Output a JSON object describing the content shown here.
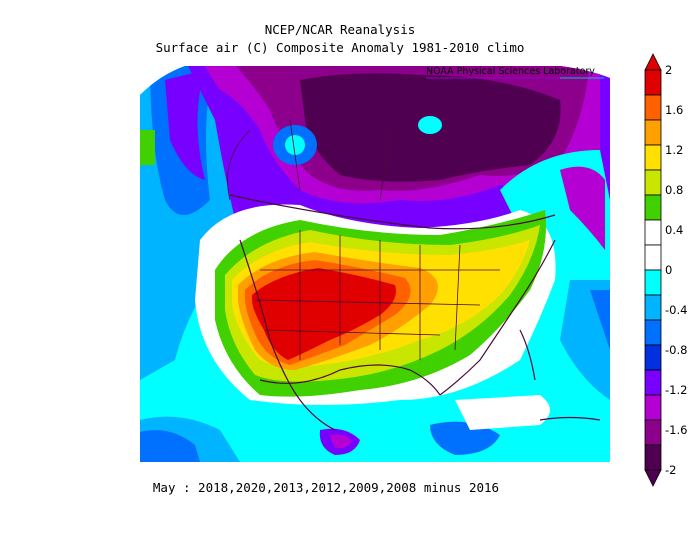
{
  "header": {
    "title_line1": "NCEP/NCAR Reanalysis",
    "title_line2": "Surface air (C) Composite Anomaly 1981-2010 climo",
    "credit": "NOAA Physical Sciences Laboratory"
  },
  "caption": "May : 2018,2020,2013,2012,2009,2008 minus 2016",
  "colorbar": {
    "labels": [
      "2",
      "1.6",
      "1.2",
      "0.8",
      "0.4",
      "0",
      "-0.4",
      "-0.8",
      "-1.2",
      "-1.6",
      "-2"
    ],
    "colors_top_to_bottom": [
      "#e00000",
      "#ff6000",
      "#ffa000",
      "#ffe000",
      "#c8e600",
      "#41d000",
      "#ffffff",
      "#ffffff",
      "#00ffff",
      "#00b4ff",
      "#0070ff",
      "#0030e0",
      "#7800ff",
      "#b400d2",
      "#8c008c",
      "#500050"
    ]
  },
  "map": {
    "projection": "polar stereographic, North America",
    "variable": "Surface air temperature anomaly (C)"
  }
}
